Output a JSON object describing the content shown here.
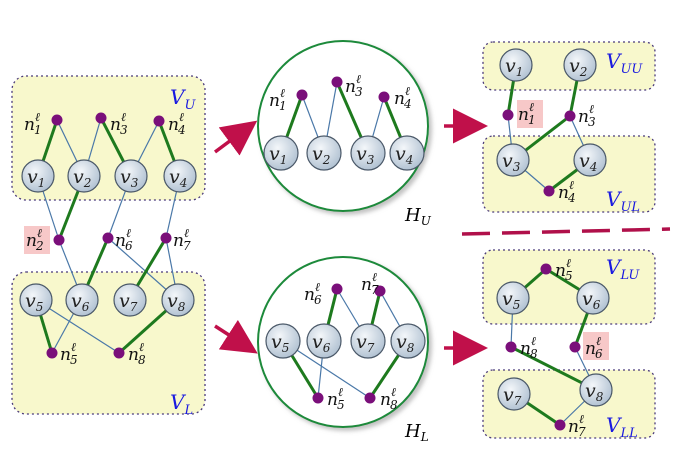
{
  "colors": {
    "region_fill": "#f8f8cc",
    "region_border": "#4a3a7a",
    "node_fill_top": "#eef2f6",
    "node_fill_bottom": "#b4c4d4",
    "node_stroke": "#4a5868",
    "net_fill": "#7a0f7a",
    "green_edge": "#1e7a1e",
    "blue_edge": "#4a78a8",
    "arrow": "#c0104a",
    "hyper_circle": "#1e8a3a",
    "highlight": "#f7c8c8",
    "label_blue": "#1a1ae0"
  },
  "labels": {
    "vu": "V",
    "vu_sub": "U",
    "vl": "V",
    "vl_sub": "L",
    "vuu": "V",
    "vuu_sub": "UU",
    "vul": "V",
    "vul_sub": "UL",
    "vlu": "V",
    "vlu_sub": "LU",
    "vll": "V",
    "vll_sub": "LL",
    "hu": "H",
    "hu_sub": "U",
    "hl": "H",
    "hl_sub": "L"
  },
  "nodes": {
    "v1": {
      "base": "v",
      "sub": "1"
    },
    "v2": {
      "base": "v",
      "sub": "2"
    },
    "v3": {
      "base": "v",
      "sub": "3"
    },
    "v4": {
      "base": "v",
      "sub": "4"
    },
    "v5": {
      "base": "v",
      "sub": "5"
    },
    "v6": {
      "base": "v",
      "sub": "6"
    },
    "v7": {
      "base": "v",
      "sub": "7"
    },
    "v8": {
      "base": "v",
      "sub": "8"
    }
  },
  "nets": {
    "n1": {
      "base": "n",
      "sub": "1",
      "sup": "ℓ"
    },
    "n2": {
      "base": "n",
      "sub": "2",
      "sup": "ℓ"
    },
    "n3": {
      "base": "n",
      "sub": "3",
      "sup": "ℓ"
    },
    "n4": {
      "base": "n",
      "sub": "4",
      "sup": "ℓ"
    },
    "n5": {
      "base": "n",
      "sub": "5",
      "sup": "ℓ"
    },
    "n6": {
      "base": "n",
      "sub": "6",
      "sup": "ℓ"
    },
    "n7": {
      "base": "n",
      "sub": "7",
      "sup": "ℓ"
    },
    "n8": {
      "base": "n",
      "sub": "8",
      "sup": "ℓ"
    }
  },
  "panels": {
    "left": "partitioned graph with regions V_U and V_L",
    "middle_top": "hypergraph H_U",
    "middle_bottom": "hypergraph H_L",
    "right": "recursive partitions V_UU, V_UL, V_LU, V_LL"
  }
}
